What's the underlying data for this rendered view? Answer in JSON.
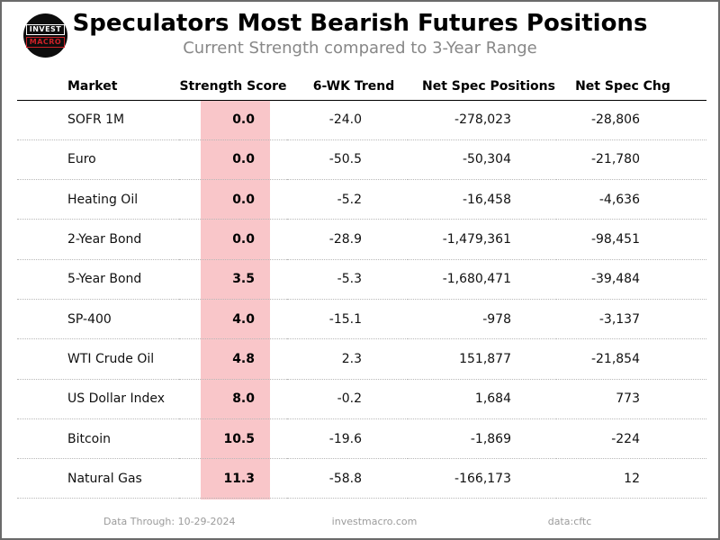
{
  "page": {
    "title": "Speculators Most Bearish Futures Positions",
    "subtitle": "Current Strength compared to 3-Year Range"
  },
  "logo": {
    "line1": "INVEST",
    "line2": "MACRO"
  },
  "table": {
    "headers": [
      "Market",
      "Strength Score",
      "6-WK Trend",
      "Net Spec Positions",
      "Net Spec Chg"
    ],
    "rows": [
      {
        "market": "SOFR 1M",
        "score": "0.0",
        "trend": "-24.0",
        "positions": "-278,023",
        "chg": "-28,806"
      },
      {
        "market": "Euro",
        "score": "0.0",
        "trend": "-50.5",
        "positions": "-50,304",
        "chg": "-21,780"
      },
      {
        "market": "Heating Oil",
        "score": "0.0",
        "trend": "-5.2",
        "positions": "-16,458",
        "chg": "-4,636"
      },
      {
        "market": "2-Year Bond",
        "score": "0.0",
        "trend": "-28.9",
        "positions": "-1,479,361",
        "chg": "-98,451"
      },
      {
        "market": "5-Year Bond",
        "score": "3.5",
        "trend": "-5.3",
        "positions": "-1,680,471",
        "chg": "-39,484"
      },
      {
        "market": "SP-400",
        "score": "4.0",
        "trend": "-15.1",
        "positions": "-978",
        "chg": "-3,137"
      },
      {
        "market": "WTI Crude Oil",
        "score": "4.8",
        "trend": "2.3",
        "positions": "151,877",
        "chg": "-21,854"
      },
      {
        "market": "US Dollar Index",
        "score": "8.0",
        "trend": "-0.2",
        "positions": "1,684",
        "chg": "773"
      },
      {
        "market": "Bitcoin",
        "score": "10.5",
        "trend": "-19.6",
        "positions": "-1,869",
        "chg": "-224"
      },
      {
        "market": "Natural Gas",
        "score": "11.3",
        "trend": "-58.8",
        "positions": "-166,173",
        "chg": "12"
      }
    ]
  },
  "footer": {
    "data_through": "Data Through: 10-29-2024",
    "site": "investmacro.com",
    "source": "data:cftc"
  },
  "colors": {
    "highlight_pink": "#f9c6c9",
    "logo_red": "#cc2127",
    "subtitle_gray": "#878787",
    "footer_gray": "#9b9b9b"
  },
  "chart_data": {
    "type": "table",
    "title": "Speculators Most Bearish Futures Positions",
    "subtitle": "Current Strength compared to 3-Year Range",
    "columns": [
      "Market",
      "Strength Score",
      "6-WK Trend",
      "Net Spec Positions",
      "Net Spec Chg"
    ],
    "rows": [
      [
        "SOFR 1M",
        0.0,
        -24.0,
        -278023,
        -28806
      ],
      [
        "Euro",
        0.0,
        -50.5,
        -50304,
        -21780
      ],
      [
        "Heating Oil",
        0.0,
        -5.2,
        -16458,
        -4636
      ],
      [
        "2-Year Bond",
        0.0,
        -28.9,
        -1479361,
        -98451
      ],
      [
        "5-Year Bond",
        3.5,
        -5.3,
        -1680471,
        -39484
      ],
      [
        "SP-400",
        4.0,
        -15.1,
        -978,
        -3137
      ],
      [
        "WTI Crude Oil",
        4.8,
        2.3,
        151877,
        -21854
      ],
      [
        "US Dollar Index",
        8.0,
        -0.2,
        1684,
        773
      ],
      [
        "Bitcoin",
        10.5,
        -19.6,
        -1869,
        -224
      ],
      [
        "Natural Gas",
        11.3,
        -58.8,
        -166173,
        12
      ]
    ],
    "layout_hints": {
      "highlighted_column": "Strength Score",
      "highlight_color": "#f9c6c9",
      "row_separator": "dotted",
      "header_separator": "solid"
    }
  }
}
